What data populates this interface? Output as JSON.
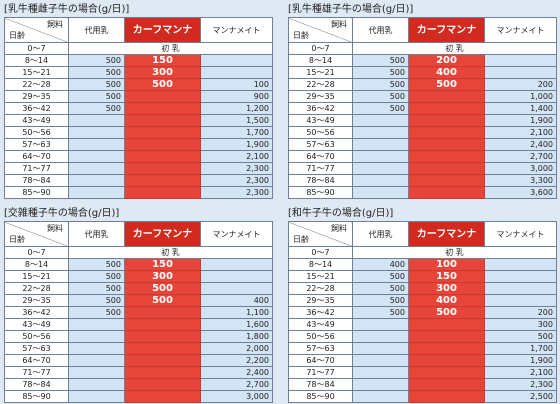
{
  "tables": [
    {
      "title": "[乳牛種雌子牛の場合(g/日)]",
      "header": {
        "feed": "飼料",
        "age": "日齢",
        "columns": [
          "代用乳",
          "カーフマンナ",
          "マンナメイト"
        ]
      },
      "first_row": {
        "age": "0～7",
        "label": "初 乳"
      },
      "rows": [
        [
          "8～14",
          "500",
          "150",
          null
        ],
        [
          "15～21",
          "500",
          "300",
          null
        ],
        [
          "22～28",
          "500",
          "500",
          "100"
        ],
        [
          "29～35",
          "500",
          null,
          "900"
        ],
        [
          "36～42",
          "500",
          null,
          "1,200"
        ],
        [
          "43～49",
          null,
          null,
          "1,500"
        ],
        [
          "50～56",
          null,
          null,
          "1,700"
        ],
        [
          "57～63",
          null,
          null,
          "1,900"
        ],
        [
          "64～70",
          null,
          null,
          "2,100"
        ],
        [
          "71～77",
          null,
          null,
          "2,300"
        ],
        [
          "78～84",
          null,
          null,
          "2,300"
        ],
        [
          "85～90",
          null,
          null,
          "2,300"
        ]
      ]
    },
    {
      "title": "[乳牛種雄子牛の場合(g/日)]",
      "header": {
        "feed": "飼料",
        "age": "日齢",
        "columns": [
          "代用乳",
          "カーフマンナ",
          "マンナメイト"
        ]
      },
      "first_row": {
        "age": "0～7",
        "label": "初 乳"
      },
      "rows": [
        [
          "8～14",
          "500",
          "200",
          null
        ],
        [
          "15～21",
          "500",
          "400",
          null
        ],
        [
          "22～28",
          "500",
          "500",
          "200"
        ],
        [
          "29～35",
          "500",
          null,
          "1,000"
        ],
        [
          "36～42",
          "500",
          null,
          "1,400"
        ],
        [
          "43～49",
          null,
          null,
          "1,900"
        ],
        [
          "50～56",
          null,
          null,
          "2,100"
        ],
        [
          "57～63",
          null,
          null,
          "2,400"
        ],
        [
          "64～70",
          null,
          null,
          "2,700"
        ],
        [
          "71～77",
          null,
          null,
          "3,000"
        ],
        [
          "78～84",
          null,
          null,
          "3,300"
        ],
        [
          "85～90",
          null,
          null,
          "3,600"
        ]
      ]
    },
    {
      "title": "[交雑種子牛の場合(g/日)]",
      "header": {
        "feed": "飼料",
        "age": "日齢",
        "columns": [
          "代用乳",
          "カーフマンナ",
          "マンナメイト"
        ]
      },
      "first_row": {
        "age": "0～7",
        "label": "初 乳"
      },
      "rows": [
        [
          "8～14",
          "500",
          "150",
          null
        ],
        [
          "15～21",
          "500",
          "300",
          null
        ],
        [
          "22～28",
          "500",
          "500",
          null
        ],
        [
          "29～35",
          "500",
          "500",
          "400"
        ],
        [
          "36～42",
          "500",
          null,
          "1,100"
        ],
        [
          "43～49",
          null,
          null,
          "1,600"
        ],
        [
          "50～56",
          null,
          null,
          "1,800"
        ],
        [
          "57～63",
          null,
          null,
          "2,000"
        ],
        [
          "64～70",
          null,
          null,
          "2,200"
        ],
        [
          "71～77",
          null,
          null,
          "2,400"
        ],
        [
          "78～84",
          null,
          null,
          "2,700"
        ],
        [
          "85～90",
          null,
          null,
          "3,000"
        ]
      ]
    },
    {
      "title": "[和牛子牛の場合(g/日)]",
      "header": {
        "feed": "飼料",
        "age": "日齢",
        "columns": [
          "代用乳",
          "カーフマンナ",
          "マンナメイト"
        ]
      },
      "first_row": {
        "age": "0～7",
        "label": "初 乳"
      },
      "rows": [
        [
          "8～14",
          "400",
          "100",
          null
        ],
        [
          "15～21",
          "500",
          "150",
          null
        ],
        [
          "22～28",
          "500",
          "300",
          null
        ],
        [
          "29～35",
          "500",
          "400",
          null
        ],
        [
          "36～42",
          "500",
          "500",
          "200"
        ],
        [
          "43～49",
          null,
          null,
          "300"
        ],
        [
          "50～56",
          null,
          null,
          "500"
        ],
        [
          "57～63",
          null,
          null,
          "1,700"
        ],
        [
          "64～70",
          null,
          null,
          "1,900"
        ],
        [
          "71～77",
          null,
          null,
          "2,100"
        ],
        [
          "78～84",
          null,
          null,
          "2,300"
        ],
        [
          "85～90",
          null,
          null,
          "2,500"
        ]
      ]
    }
  ]
}
